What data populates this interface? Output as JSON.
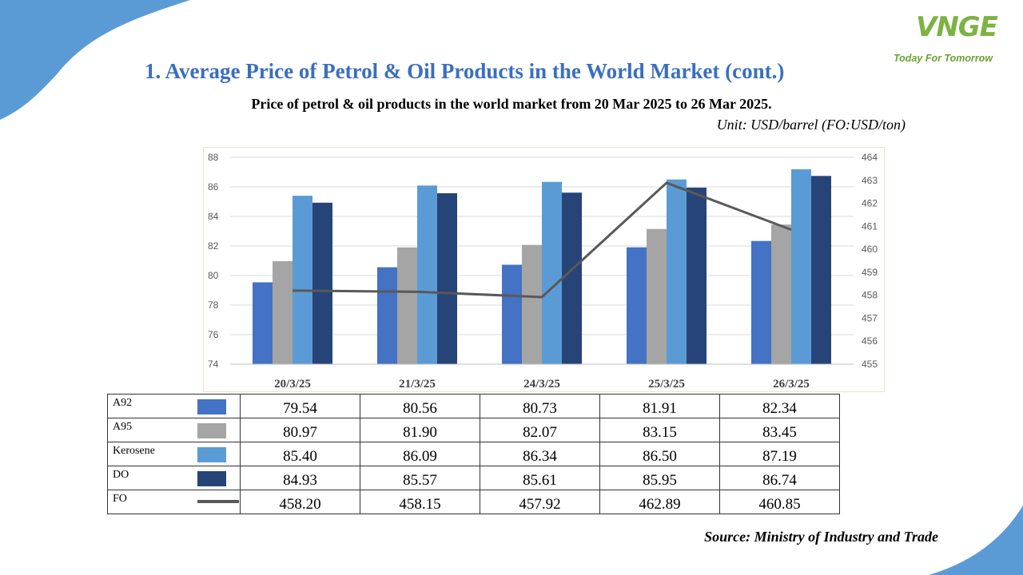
{
  "brand": {
    "logo_text": "VNGE",
    "tagline": "Today For Tomorrow"
  },
  "page": {
    "title": "1. Average Price of Petrol & Oil Products in the World Market (cont.)",
    "subtitle": "Price of petrol & oil products in the world market from 20 Mar 2025 to 26 Mar 2025.",
    "unit": "Unit: USD/barrel (FO:USD/ton)",
    "source": "Source: Ministry of Industry and Trade"
  },
  "colors": {
    "A92": "#4472c4",
    "A95": "#a5a5a5",
    "Kerosene": "#5b9bd5",
    "DO": "#264478",
    "FO": "#595959",
    "title": "#3a6fbf",
    "decor": "#5b9bd5"
  },
  "chart_data": {
    "type": "bar",
    "categories": [
      "20/3/25",
      "21/3/25",
      "24/3/25",
      "25/3/25",
      "26/3/25"
    ],
    "series": [
      {
        "name": "A92",
        "type": "bar",
        "axis": "left",
        "values": [
          79.54,
          80.56,
          80.73,
          81.91,
          82.34
        ]
      },
      {
        "name": "A95",
        "type": "bar",
        "axis": "left",
        "values": [
          80.97,
          81.9,
          82.07,
          83.15,
          83.45
        ]
      },
      {
        "name": "Kerosene",
        "type": "bar",
        "axis": "left",
        "values": [
          85.4,
          86.09,
          86.34,
          86.5,
          87.19
        ]
      },
      {
        "name": "DO",
        "type": "bar",
        "axis": "left",
        "values": [
          84.93,
          85.57,
          85.61,
          85.95,
          86.74
        ]
      },
      {
        "name": "FO",
        "type": "line",
        "axis": "right",
        "values": [
          458.2,
          458.15,
          457.92,
          462.89,
          460.85
        ]
      }
    ],
    "ylim": [
      74,
      88
    ],
    "yticks": [
      74,
      76,
      78,
      80,
      82,
      84,
      86,
      88
    ],
    "y2lim": [
      455,
      464
    ],
    "y2ticks": [
      455,
      456,
      457,
      458,
      459,
      460,
      461,
      462,
      463,
      464
    ],
    "grid": true,
    "legend": "data-table below chart"
  },
  "table": {
    "rows": [
      {
        "name": "A92",
        "values": [
          "79.54",
          "80.56",
          "80.73",
          "81.91",
          "82.34"
        ]
      },
      {
        "name": "A95",
        "values": [
          "80.97",
          "81.90",
          "82.07",
          "83.15",
          "83.45"
        ]
      },
      {
        "name": "Kerosene",
        "values": [
          "85.40",
          "86.09",
          "86.34",
          "86.50",
          "87.19"
        ]
      },
      {
        "name": "DO",
        "values": [
          "84.93",
          "85.57",
          "85.61",
          "85.95",
          "86.74"
        ]
      },
      {
        "name": "FO",
        "values": [
          "458.20",
          "458.15",
          "457.92",
          "462.89",
          "460.85"
        ]
      }
    ]
  }
}
